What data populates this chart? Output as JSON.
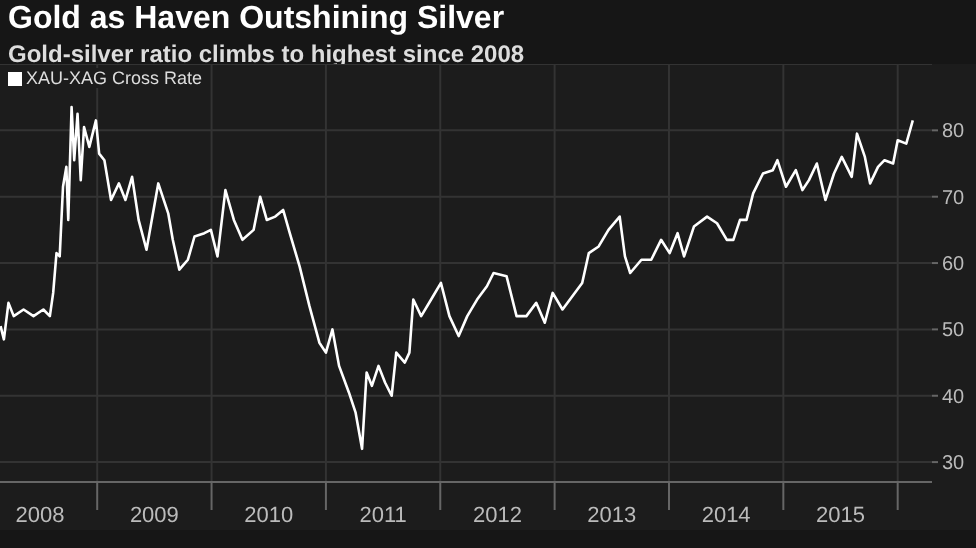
{
  "chart_data": {
    "type": "line",
    "title": "Gold as Haven Outshining Silver",
    "subtitle": "Gold-silver ratio climbs to highest since 2008",
    "x": [
      2008.155,
      2008.184,
      2008.224,
      2008.27,
      2008.356,
      2008.443,
      2008.529,
      2008.586,
      2008.615,
      2008.644,
      2008.672,
      2008.701,
      2008.73,
      2008.747,
      2008.776,
      2008.799,
      2008.828,
      2008.856,
      2008.885,
      2008.931,
      2008.989,
      2009.017,
      2009.063,
      2009.121,
      2009.19,
      2009.247,
      2009.305,
      2009.362,
      2009.431,
      2009.534,
      2009.621,
      2009.661,
      2009.718,
      2009.793,
      2009.851,
      2009.937,
      2009.994,
      2010.052,
      2010.121,
      2010.195,
      2010.27,
      2010.368,
      2010.425,
      2010.483,
      2010.557,
      2010.626,
      2010.684,
      2010.77,
      2010.856,
      2010.943,
      2011.0,
      2011.057,
      2011.115,
      2011.201,
      2011.259,
      2011.316,
      2011.356,
      2011.402,
      2011.46,
      2011.517,
      2011.575,
      2011.615,
      2011.69,
      2011.73,
      2011.764,
      2011.833,
      2011.92,
      2012.006,
      2012.08,
      2012.161,
      2012.236,
      2012.322,
      2012.408,
      2012.466,
      2012.58,
      2012.667,
      2012.753,
      2012.839,
      2012.914,
      2012.983,
      2013.069,
      2013.155,
      2013.241,
      2013.299,
      2013.385,
      2013.471,
      2013.569,
      2013.615,
      2013.661,
      2013.759,
      2013.845,
      2013.931,
      2014.006,
      2014.075,
      2014.132,
      2014.218,
      2014.333,
      2014.42,
      2014.506,
      2014.563,
      2014.621,
      2014.678,
      2014.736,
      2014.822,
      2014.908,
      2014.948,
      2015.023,
      2015.109,
      2015.167,
      2015.224,
      2015.293,
      2015.368,
      2015.443,
      2015.511,
      2015.598,
      2015.644,
      2015.713,
      2015.759,
      2015.828,
      2015.885,
      2015.96,
      2016.0,
      2016.075,
      2016.132
    ],
    "series": [
      {
        "name": "XAU-XAG Cross Rate",
        "color": "#ffffff",
        "values": [
          50.5,
          48.5,
          54,
          52,
          53,
          52,
          53,
          52,
          55.5,
          61.5,
          61,
          71.5,
          74.5,
          66.5,
          83.5,
          75.5,
          82.5,
          72.5,
          80.5,
          77.5,
          81.5,
          76.5,
          75.5,
          69.5,
          72,
          69.5,
          73,
          66.5,
          62,
          72,
          67.5,
          63.5,
          59,
          60.5,
          64,
          64.5,
          65,
          61,
          71,
          66.5,
          63.5,
          65,
          70,
          66.5,
          67,
          68,
          64.5,
          59.5,
          53.5,
          48,
          46.5,
          50,
          44.5,
          40.5,
          37.5,
          32,
          43.5,
          41.5,
          44.5,
          42,
          40,
          46.5,
          45,
          46.5,
          54.5,
          52,
          54.5,
          57,
          52,
          49,
          52,
          54.5,
          56.5,
          58.5,
          58,
          52,
          52,
          54,
          51,
          55.5,
          53,
          55,
          57,
          61.5,
          62.5,
          65,
          67,
          61,
          58.5,
          60.5,
          60.5,
          63.5,
          61.5,
          64.5,
          61,
          65.5,
          67,
          66,
          63.5,
          63.5,
          66.5,
          66.5,
          70.5,
          73.5,
          74,
          75.5,
          71.5,
          74,
          71,
          72.5,
          75,
          69.5,
          73.5,
          76,
          73,
          79.5,
          76,
          72,
          74.5,
          75.5,
          75,
          78.5,
          78,
          81.5
        ]
      }
    ],
    "xlim": [
      2008.15,
      2016.3
    ],
    "xticks": [
      {
        "value": 2008.5,
        "label": "2008"
      },
      {
        "value": 2009,
        "label": null
      },
      {
        "value": 2009.5,
        "label": "2009"
      },
      {
        "value": 2010,
        "label": null
      },
      {
        "value": 2010.5,
        "label": "2010"
      },
      {
        "value": 2011,
        "label": null
      },
      {
        "value": 2011.5,
        "label": "2011"
      },
      {
        "value": 2012,
        "label": null
      },
      {
        "value": 2012.5,
        "label": "2012"
      },
      {
        "value": 2013,
        "label": null
      },
      {
        "value": 2013.5,
        "label": "2013"
      },
      {
        "value": 2014,
        "label": null
      },
      {
        "value": 2014.5,
        "label": "2014"
      },
      {
        "value": 2015,
        "label": null
      },
      {
        "value": 2015.5,
        "label": "2015"
      },
      {
        "value": 2016,
        "label": null
      }
    ],
    "ylim": [
      27,
      90
    ],
    "yticks": [
      30,
      40,
      50,
      60,
      70,
      80
    ],
    "grid": true,
    "legend": "top left",
    "marker": "none",
    "line_style": "solid"
  }
}
